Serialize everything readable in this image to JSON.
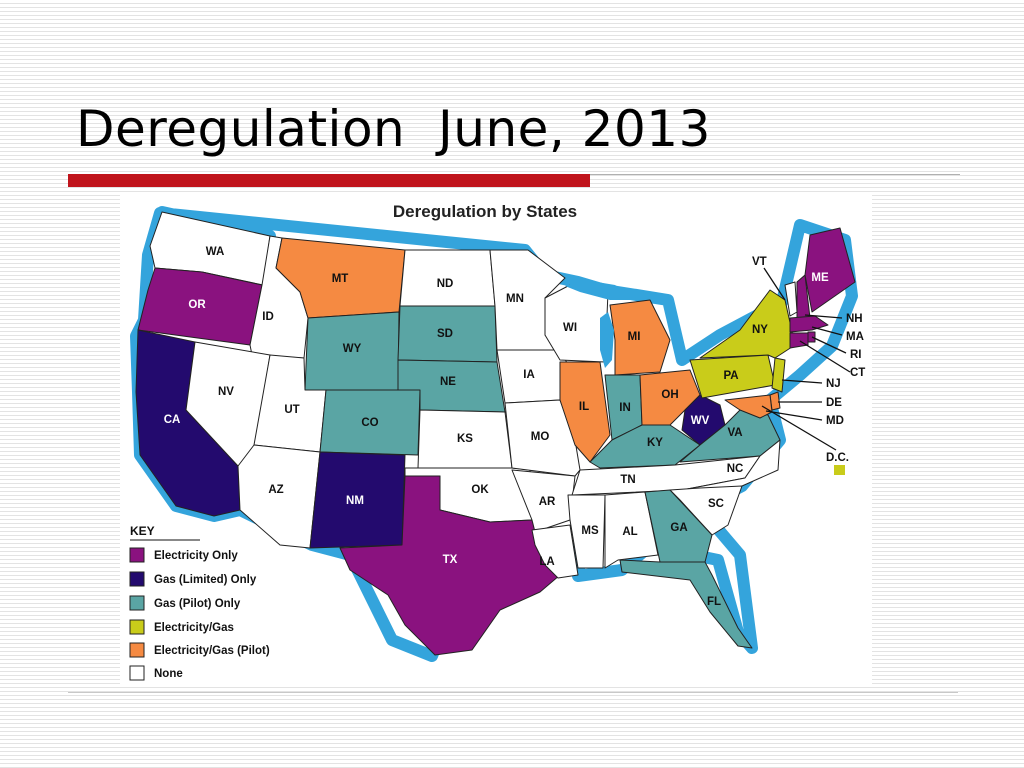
{
  "slide": {
    "title": "Deregulation  June, 2013"
  },
  "map": {
    "title": "Deregulation by States",
    "colors": {
      "electricity_only": "#8a127f",
      "gas_limited_only": "#230a6e",
      "gas_pilot_only": "#5aa5a4",
      "electricity_gas": "#c9cc1a",
      "electricity_gas_pilot": "#f58a42",
      "none": "#ffffff",
      "ocean": "#34a4dc",
      "border": "#222222"
    },
    "states": {
      "WA": "none",
      "OR": "electricity_only",
      "CA": "gas_limited_only",
      "NV": "none",
      "ID": "none",
      "MT": "electricity_gas_pilot",
      "WY": "gas_pilot_only",
      "UT": "none",
      "AZ": "none",
      "CO": "gas_pilot_only",
      "NM": "gas_limited_only",
      "ND": "none",
      "SD": "gas_pilot_only",
      "NE": "gas_pilot_only",
      "KS": "none",
      "OK": "none",
      "TX": "electricity_only",
      "MN": "none",
      "IA": "none",
      "MO": "none",
      "AR": "none",
      "LA": "none",
      "WI": "none",
      "IL": "electricity_gas_pilot",
      "MI": "electricity_gas_pilot",
      "IN": "gas_pilot_only",
      "OH": "electricity_gas_pilot",
      "KY": "gas_pilot_only",
      "TN": "none",
      "MS": "none",
      "AL": "none",
      "GA": "gas_pilot_only",
      "FL": "gas_pilot_only",
      "SC": "none",
      "NC": "none",
      "VA": "gas_pilot_only",
      "WV": "gas_limited_only",
      "PA": "electricity_gas",
      "NY": "electricity_gas",
      "VT": "none",
      "ME": "electricity_only",
      "NH": "electricity_only",
      "MA": "electricity_only",
      "RI": "electricity_only",
      "CT": "electricity_only",
      "NJ": "electricity_gas",
      "DE": "electricity_gas_pilot",
      "MD": "electricity_gas_pilot",
      "DC": "electricity_gas"
    },
    "key": {
      "title": "KEY",
      "items": [
        {
          "label": "Electricity Only",
          "category": "electricity_only"
        },
        {
          "label": "Gas (Limited) Only",
          "category": "gas_limited_only"
        },
        {
          "label": "Gas (Pilot) Only",
          "category": "gas_pilot_only"
        },
        {
          "label": "Electricity/Gas",
          "category": "electricity_gas"
        },
        {
          "label": "Electricity/Gas (Pilot)",
          "category": "electricity_gas_pilot"
        },
        {
          "label": "None",
          "category": "none"
        }
      ]
    },
    "labels": {
      "WA": "WA",
      "OR": "OR",
      "CA": "CA",
      "NV": "NV",
      "ID": "ID",
      "MT": "MT",
      "WY": "WY",
      "UT": "UT",
      "AZ": "AZ",
      "CO": "CO",
      "NM": "NM",
      "ND": "ND",
      "SD": "SD",
      "NE": "NE",
      "KS": "KS",
      "OK": "OK",
      "TX": "TX",
      "MN": "MN",
      "IA": "IA",
      "MO": "MO",
      "AR": "AR",
      "LA": "LA",
      "WI": "WI",
      "IL": "IL",
      "MI": "MI",
      "IN": "IN",
      "OH": "OH",
      "KY": "KY",
      "TN": "TN",
      "MS": "MS",
      "AL": "AL",
      "GA": "GA",
      "FL": "FL",
      "SC": "SC",
      "NC": "NC",
      "VA": "VA",
      "WV": "WV",
      "PA": "PA",
      "NY": "NY",
      "VT": "VT",
      "ME": "ME",
      "NH": "NH",
      "MA": "MA",
      "RI": "RI",
      "CT": "CT",
      "NJ": "NJ",
      "DE": "DE",
      "MD": "MD",
      "DC": "D.C."
    }
  }
}
